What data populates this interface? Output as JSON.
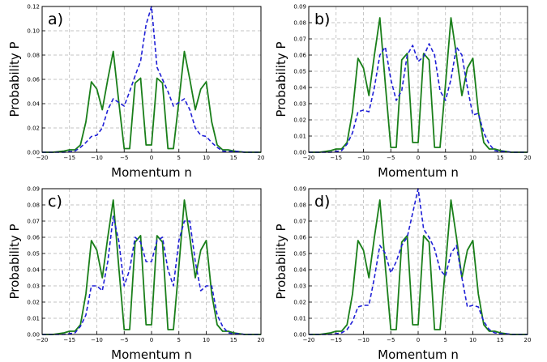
{
  "colors": {
    "solid": "#1a7f1a",
    "dashed": "#1f1fd6"
  },
  "chart_data": [
    {
      "type": "line",
      "panel_label": "a)",
      "xlabel": "Momentum n",
      "ylabel": "Probability P",
      "xlim": [
        -20,
        20
      ],
      "ylim": [
        0,
        0.12
      ],
      "xticks": [
        "−20",
        "−15",
        "−10",
        "−5",
        "0",
        "5",
        "10",
        "15",
        "20"
      ],
      "yticks": [
        "0.00",
        "0.02",
        "0.04",
        "0.06",
        "0.08",
        "0.10",
        "0.12"
      ],
      "grid": true,
      "x": [
        -20,
        -19,
        -18,
        -17,
        -16,
        -15,
        -14,
        -13,
        -12,
        -11,
        -10,
        -9,
        -8,
        -7,
        -6,
        -5,
        -4,
        -3,
        -2,
        -1,
        0,
        1,
        2,
        3,
        4,
        5,
        6,
        7,
        8,
        9,
        10,
        11,
        12,
        13,
        14,
        15,
        16,
        17,
        18,
        19,
        20
      ],
      "series": [
        {
          "style": "solid",
          "values": [
            0,
            0,
            0,
            0.0005,
            0.001,
            0.002,
            0.002,
            0.006,
            0.025,
            0.058,
            0.052,
            0.035,
            0.06,
            0.083,
            0.042,
            0.003,
            0.003,
            0.057,
            0.061,
            0.006,
            0.006,
            0.061,
            0.057,
            0.003,
            0.003,
            0.042,
            0.083,
            0.06,
            0.035,
            0.052,
            0.058,
            0.025,
            0.006,
            0.002,
            0.002,
            0.001,
            0.0005,
            0,
            0,
            0,
            0
          ]
        },
        {
          "style": "dashed",
          "values": [
            0,
            0,
            0,
            0,
            0,
            0.0005,
            0.001,
            0.004,
            0.008,
            0.013,
            0.014,
            0.02,
            0.035,
            0.044,
            0.041,
            0.038,
            0.05,
            0.063,
            0.075,
            0.105,
            0.12,
            0.07,
            0.06,
            0.05,
            0.038,
            0.041,
            0.044,
            0.035,
            0.02,
            0.014,
            0.013,
            0.008,
            0.004,
            0.001,
            0.0005,
            0.001,
            0.0005,
            0,
            0,
            0,
            0
          ]
        }
      ]
    },
    {
      "type": "line",
      "panel_label": "b)",
      "xlabel": "Momentum n",
      "ylabel": "Probability P",
      "xlim": [
        -20,
        20
      ],
      "ylim": [
        0,
        0.09
      ],
      "xticks": [
        "−20",
        "−15",
        "−10",
        "−5",
        "0",
        "5",
        "10",
        "15",
        "20"
      ],
      "yticks": [
        "0.00",
        "0.01",
        "0.02",
        "0.03",
        "0.04",
        "0.05",
        "0.06",
        "0.07",
        "0.08",
        "0.09"
      ],
      "grid": true,
      "x": [
        -20,
        -19,
        -18,
        -17,
        -16,
        -15,
        -14,
        -13,
        -12,
        -11,
        -10,
        -9,
        -8,
        -7,
        -6,
        -5,
        -4,
        -3,
        -2,
        -1,
        0,
        1,
        2,
        3,
        4,
        5,
        6,
        7,
        8,
        9,
        10,
        11,
        12,
        13,
        14,
        15,
        16,
        17,
        18,
        19,
        20
      ],
      "series": [
        {
          "style": "solid",
          "values": [
            0,
            0,
            0,
            0.0005,
            0.001,
            0.002,
            0.002,
            0.006,
            0.025,
            0.058,
            0.052,
            0.035,
            0.06,
            0.083,
            0.042,
            0.003,
            0.003,
            0.057,
            0.061,
            0.006,
            0.006,
            0.061,
            0.057,
            0.003,
            0.003,
            0.042,
            0.083,
            0.06,
            0.035,
            0.052,
            0.058,
            0.025,
            0.006,
            0.002,
            0.002,
            0.001,
            0.0005,
            0,
            0,
            0,
            0
          ]
        },
        {
          "style": "dashed",
          "values": [
            0,
            0,
            0,
            0,
            0,
            0.0005,
            0.001,
            0.005,
            0.012,
            0.025,
            0.026,
            0.025,
            0.04,
            0.06,
            0.065,
            0.045,
            0.032,
            0.038,
            0.06,
            0.066,
            0.056,
            0.059,
            0.067,
            0.06,
            0.038,
            0.032,
            0.045,
            0.065,
            0.06,
            0.04,
            0.023,
            0.024,
            0.012,
            0.005,
            0.001,
            0.0005,
            0.0005,
            0,
            0,
            0,
            0
          ]
        }
      ]
    },
    {
      "type": "line",
      "panel_label": "c)",
      "xlabel": "Momentum n",
      "ylabel": "Probability P",
      "xlim": [
        -20,
        20
      ],
      "ylim": [
        0,
        0.09
      ],
      "xticks": [
        "−20",
        "−15",
        "−10",
        "−5",
        "0",
        "5",
        "10",
        "15",
        "20"
      ],
      "yticks": [
        "0.00",
        "0.01",
        "0.02",
        "0.03",
        "0.04",
        "0.05",
        "0.06",
        "0.07",
        "0.08",
        "0.09"
      ],
      "grid": true,
      "x": [
        -20,
        -19,
        -18,
        -17,
        -16,
        -15,
        -14,
        -13,
        -12,
        -11,
        -10,
        -9,
        -8,
        -7,
        -6,
        -5,
        -4,
        -3,
        -2,
        -1,
        0,
        1,
        2,
        3,
        4,
        5,
        6,
        7,
        8,
        9,
        10,
        11,
        12,
        13,
        14,
        15,
        16,
        17,
        18,
        19,
        20
      ],
      "series": [
        {
          "style": "solid",
          "values": [
            0,
            0,
            0,
            0.0005,
            0.001,
            0.002,
            0.002,
            0.006,
            0.025,
            0.058,
            0.052,
            0.035,
            0.06,
            0.083,
            0.042,
            0.003,
            0.003,
            0.057,
            0.061,
            0.006,
            0.006,
            0.061,
            0.057,
            0.003,
            0.003,
            0.042,
            0.083,
            0.06,
            0.035,
            0.052,
            0.058,
            0.025,
            0.006,
            0.002,
            0.002,
            0.001,
            0.0005,
            0,
            0,
            0,
            0
          ]
        },
        {
          "style": "dashed",
          "values": [
            0,
            0,
            0,
            0,
            0,
            0.0005,
            0.001,
            0.005,
            0.012,
            0.03,
            0.03,
            0.027,
            0.045,
            0.073,
            0.058,
            0.03,
            0.04,
            0.06,
            0.057,
            0.045,
            0.045,
            0.058,
            0.06,
            0.04,
            0.03,
            0.058,
            0.07,
            0.07,
            0.045,
            0.027,
            0.03,
            0.03,
            0.012,
            0.005,
            0.001,
            0.0005,
            0.0005,
            0,
            0,
            0,
            0
          ]
        }
      ]
    },
    {
      "type": "line",
      "panel_label": "d)",
      "xlabel": "Momentum n",
      "ylabel": "Probability P",
      "xlim": [
        -20,
        20
      ],
      "ylim": [
        0,
        0.09
      ],
      "xticks": [
        "−20",
        "−15",
        "−10",
        "−5",
        "0",
        "5",
        "10",
        "15",
        "20"
      ],
      "yticks": [
        "0.00",
        "0.01",
        "0.02",
        "0.03",
        "0.04",
        "0.05",
        "0.06",
        "0.07",
        "0.08",
        "0.09"
      ],
      "grid": true,
      "x": [
        -20,
        -19,
        -18,
        -17,
        -16,
        -15,
        -14,
        -13,
        -12,
        -11,
        -10,
        -9,
        -8,
        -7,
        -6,
        -5,
        -4,
        -3,
        -2,
        -1,
        0,
        1,
        2,
        3,
        4,
        5,
        6,
        7,
        8,
        9,
        10,
        11,
        12,
        13,
        14,
        15,
        16,
        17,
        18,
        19,
        20
      ],
      "series": [
        {
          "style": "solid",
          "values": [
            0,
            0,
            0,
            0.0005,
            0.001,
            0.002,
            0.002,
            0.006,
            0.025,
            0.058,
            0.052,
            0.035,
            0.06,
            0.083,
            0.042,
            0.003,
            0.003,
            0.057,
            0.061,
            0.006,
            0.006,
            0.061,
            0.057,
            0.003,
            0.003,
            0.042,
            0.083,
            0.06,
            0.035,
            0.052,
            0.058,
            0.025,
            0.006,
            0.002,
            0.002,
            0.001,
            0.0005,
            0,
            0,
            0,
            0
          ]
        },
        {
          "style": "dashed",
          "values": [
            0,
            0,
            0,
            0,
            0,
            0.0005,
            0.001,
            0.003,
            0.008,
            0.017,
            0.018,
            0.018,
            0.035,
            0.055,
            0.05,
            0.038,
            0.045,
            0.055,
            0.06,
            0.075,
            0.09,
            0.065,
            0.06,
            0.053,
            0.04,
            0.036,
            0.05,
            0.055,
            0.035,
            0.017,
            0.018,
            0.017,
            0.008,
            0.003,
            0.001,
            0.0005,
            0.0005,
            0,
            0,
            0,
            0
          ]
        }
      ]
    }
  ]
}
